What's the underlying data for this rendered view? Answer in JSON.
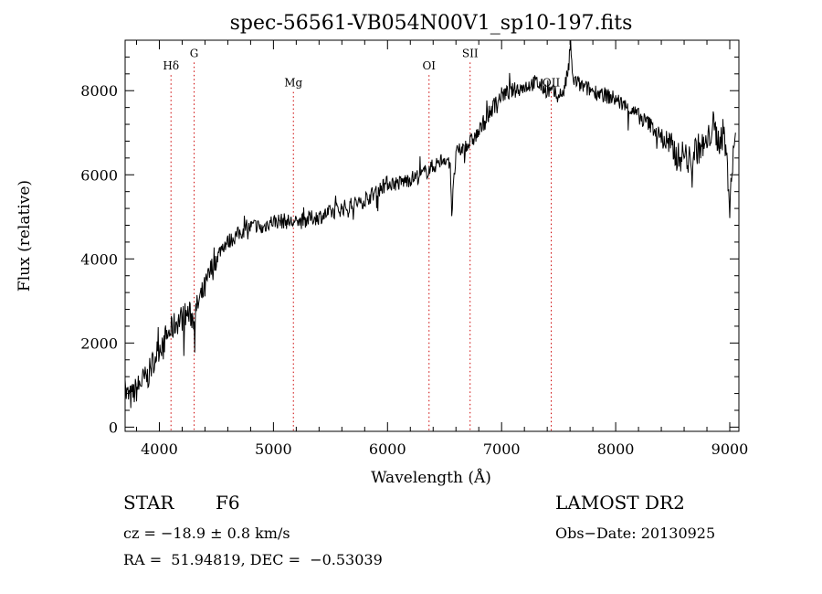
{
  "chart_data": {
    "type": "line",
    "title": "spec-56561-VB054N00V1_sp10-197.fits",
    "xlabel": "Wavelength (Å)",
    "ylabel": "Flux (relative)",
    "xlim": [
      3700,
      9080
    ],
    "ylim": [
      -100,
      9200
    ],
    "x_ticks": [
      4000,
      5000,
      6000,
      7000,
      8000,
      9000
    ],
    "y_ticks": [
      0,
      2000,
      4000,
      6000,
      8000
    ],
    "x_tick_labels": [
      "4000",
      "5000",
      "6000",
      "7000",
      "8000",
      "9000"
    ],
    "y_tick_labels": [
      "0",
      "2000",
      "4000",
      "6000",
      "8000"
    ],
    "grid": false,
    "line_color": "#000000",
    "marker_color": "#cc0000",
    "line_markers": [
      {
        "name": "Hδ",
        "wavelength": 4102,
        "label_flux": 8500
      },
      {
        "name": "G",
        "wavelength": 4305,
        "label_flux": 8800
      },
      {
        "name": "Mg",
        "wavelength": 5175,
        "label_flux": 8100
      },
      {
        "name": "OI",
        "wavelength": 6364,
        "label_flux": 8500
      },
      {
        "name": "SII",
        "wavelength": 6724,
        "label_flux": 8800
      },
      {
        "name": "OII",
        "wavelength": 7435,
        "label_flux": 8100
      }
    ],
    "series": [
      {
        "x": [
          3700,
          3750,
          3800,
          3850,
          3900,
          3950,
          4000,
          4050,
          4100,
          4150,
          4200,
          4250,
          4300,
          4350,
          4400,
          4450,
          4500,
          4550,
          4600,
          4650,
          4700,
          4750,
          4800,
          4850,
          4900,
          4950,
          5000,
          5100,
          5200,
          5300,
          5400,
          5500,
          5600,
          5700,
          5800,
          5900,
          6000,
          6100,
          6200,
          6300,
          6400,
          6500,
          6550,
          6563,
          6600,
          6650,
          6700,
          6800,
          6900,
          7000,
          7100,
          7200,
          7300,
          7400,
          7500,
          7550,
          7590,
          7605,
          7620,
          7700,
          7800,
          7900,
          8000,
          8100,
          8200,
          8300,
          8400,
          8500,
          8550,
          8600,
          8650,
          8700,
          8800,
          8850,
          8900,
          8950,
          9000,
          9050
        ],
        "values": [
          800,
          700,
          900,
          1100,
          1200,
          1600,
          1900,
          2100,
          2300,
          2500,
          2600,
          2700,
          2600,
          3000,
          3300,
          3700,
          4000,
          4300,
          4400,
          4500,
          4600,
          4700,
          4750,
          4800,
          4700,
          4850,
          4900,
          4900,
          4850,
          4950,
          5000,
          5100,
          5200,
          5300,
          5400,
          5600,
          5800,
          5800,
          5900,
          6000,
          6200,
          6400,
          6300,
          5100,
          6500,
          6600,
          6700,
          7000,
          7500,
          7900,
          8000,
          8100,
          8200,
          8000,
          7900,
          8000,
          8600,
          9200,
          8300,
          8100,
          8000,
          7900,
          7800,
          7600,
          7400,
          7200,
          6900,
          6600,
          6400,
          6500,
          6300,
          6600,
          6700,
          7200,
          6800,
          7000,
          5500,
          7000
        ]
      }
    ]
  },
  "info": {
    "object_type": "STAR",
    "subclass": "F6",
    "survey": "LAMOST DR2",
    "redshift": "cz = −18.9 ± 0.8 km/s",
    "obs_date": "Obs−Date: 20130925",
    "coords": "RA =  51.94819, DEC =  −0.53039"
  }
}
